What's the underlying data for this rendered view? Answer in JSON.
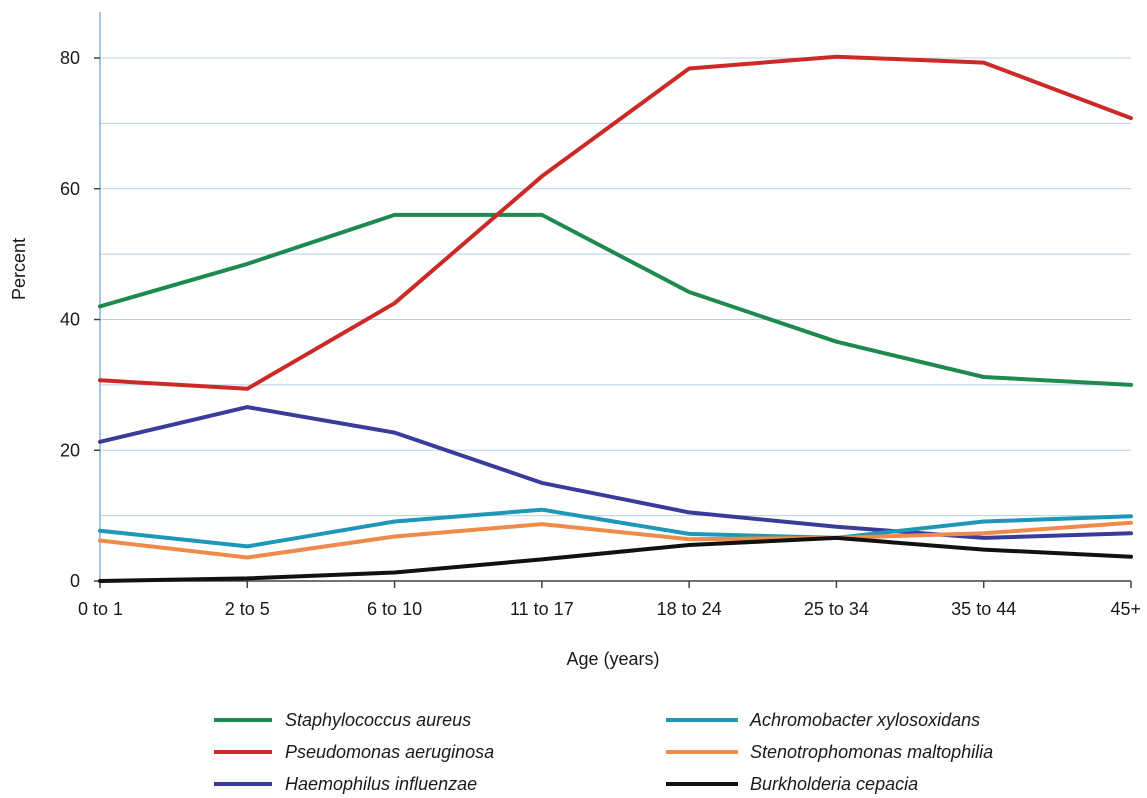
{
  "chart_data": {
    "type": "line",
    "xlabel": "Age (years)",
    "ylabel": "Percent",
    "categories": [
      "0 to 1",
      "2 to 5",
      "6 to 10",
      "11 to 17",
      "18 to 24",
      "25 to 34",
      "35 to 44",
      "45+"
    ],
    "ylim": [
      0,
      90
    ],
    "yticks": [
      0,
      20,
      40,
      60,
      80
    ],
    "grid": true,
    "legend_position": "bottom",
    "series": [
      {
        "name": "Staphylococcus aureus",
        "color": "#1e8a4f",
        "values": [
          42,
          48.5,
          56,
          56,
          44.2,
          36.6,
          31.2,
          30
        ]
      },
      {
        "name": "Pseudomonas aeruginosa",
        "color": "#cc2a27",
        "values": [
          30.7,
          29.4,
          42.5,
          61.9,
          78.4,
          80.2,
          79.3,
          70.8
        ]
      },
      {
        "name": "Haemophilus influenzae",
        "color": "#3a3c9c",
        "values": [
          21.3,
          26.6,
          22.7,
          15,
          10.5,
          8.3,
          6.6,
          7.3
        ]
      },
      {
        "name": "Achromobacter xylosoxidans",
        "color": "#1f97b8",
        "values": [
          7.7,
          5.3,
          9.1,
          10.9,
          7.2,
          6.6,
          9.1,
          9.9
        ]
      },
      {
        "name": "Stenotrophomonas maltophilia",
        "color": "#ee8a4a",
        "values": [
          6.2,
          3.6,
          6.8,
          8.7,
          6.4,
          6.6,
          7.3,
          8.9
        ]
      },
      {
        "name": "Burkholderia cepacia",
        "color": "#111111",
        "values": [
          0,
          0.4,
          1.3,
          3.3,
          5.5,
          6.6,
          4.8,
          3.7
        ]
      }
    ]
  }
}
